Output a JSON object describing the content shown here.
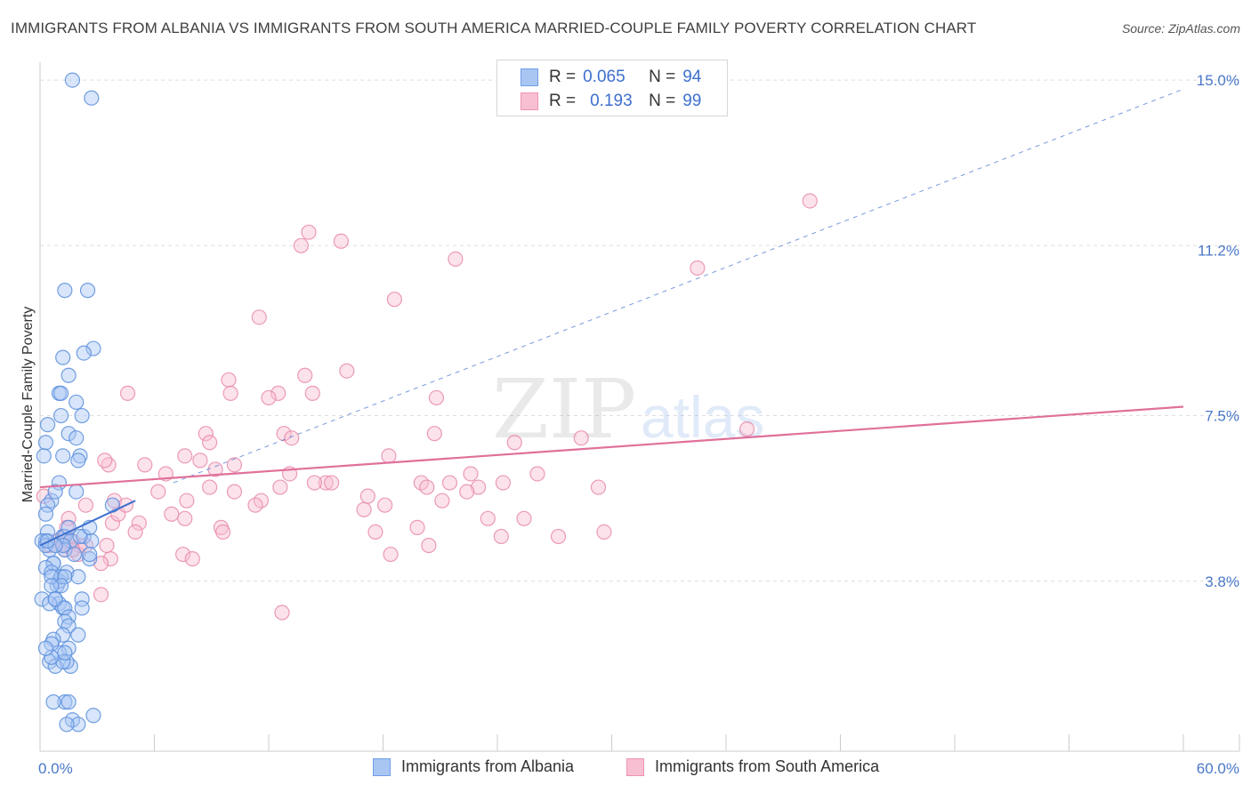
{
  "title": "IMMIGRANTS FROM ALBANIA VS IMMIGRANTS FROM SOUTH AMERICA MARRIED-COUPLE FAMILY POVERTY CORRELATION CHART",
  "source": "Source: ZipAtlas.com",
  "watermark": {
    "zip": "ZIP",
    "atlas": "atlas"
  },
  "legend": {
    "r_label": "R =",
    "n_label": "N =",
    "series": [
      {
        "name": "Immigrants from Albania",
        "r": "0.065",
        "n": "94",
        "fill": "#a9c6f3",
        "stroke": "#6f9ee6"
      },
      {
        "name": "Immigrants from South America",
        "r": "0.193",
        "n": "99",
        "fill": "#f8bfd2",
        "stroke": "#ee93b2"
      }
    ]
  },
  "colors": {
    "blue_point": "#5b8fdc",
    "pink_point": "#e88aab",
    "blue_line": "#3d6fcf",
    "pink_line": "#e0709a",
    "grid": "#dddddd",
    "tick_text": "#4a78c8"
  },
  "chart_data": {
    "type": "scatter",
    "title": "IMMIGRANTS FROM ALBANIA VS IMMIGRANTS FROM SOUTH AMERICA MARRIED-COUPLE FAMILY POVERTY CORRELATION CHART",
    "xlabel": "",
    "ylabel": "Married-Couple Family Poverty",
    "xlim": [
      0,
      60
    ],
    "ylim": [
      0,
      15.3
    ],
    "x_tick_labels": [
      {
        "value": 0,
        "label": "0.0%"
      },
      {
        "value": 60,
        "label": "60.0%"
      }
    ],
    "y_tick_labels": [
      {
        "value": 3.8,
        "label": "3.8%"
      },
      {
        "value": 7.5,
        "label": "7.5%"
      },
      {
        "value": 11.2,
        "label": "11.2%"
      },
      {
        "value": 15.0,
        "label": "15.0%"
      }
    ],
    "y_gridlines": [
      3.8,
      7.5,
      11.3,
      15.0
    ],
    "x_minor_ticks": [
      0,
      6,
      12,
      18,
      24,
      30,
      36,
      42,
      48,
      54,
      60
    ],
    "series": [
      {
        "name": "Immigrants from Albania",
        "x": [
          1.7,
          2.7,
          1.3,
          2.5,
          2.8,
          1.2,
          1.5,
          1.0,
          1.1,
          2.3,
          0.4,
          1.1,
          1.9,
          0.3,
          2.2,
          1.5,
          2.1,
          1.9,
          0.2,
          1.2,
          2.0,
          0.6,
          1.0,
          0.8,
          0.4,
          0.3,
          1.9,
          1.2,
          0.4,
          1.3,
          1.6,
          2.3,
          1.5,
          0.3,
          0.1,
          1.3,
          2.7,
          0.5,
          1.2,
          0.3,
          0.8,
          1.8,
          2.6,
          2.1,
          0.7,
          1.4,
          2.6,
          0.9,
          0.7,
          2.0,
          0.3,
          1.0,
          0.6,
          1.1,
          1.3,
          0.6,
          1.1,
          0.6,
          0.8,
          1.0,
          2.2,
          1.2,
          1.3,
          0.1,
          0.5,
          0.8,
          1.5,
          2.2,
          1.3,
          1.5,
          1.2,
          0.7,
          2.0,
          1.5,
          1.0,
          1.6,
          1.4,
          0.5,
          0.8,
          1.2,
          1.3,
          3.8,
          1.5,
          2.6,
          1.7,
          0.6,
          2.8,
          2.0,
          0.7,
          1.4,
          0.6,
          0.4,
          1.3,
          0.3
        ],
        "y": [
          15.0,
          14.6,
          10.3,
          10.3,
          9.0,
          8.8,
          8.4,
          8.0,
          8.0,
          8.9,
          7.3,
          7.5,
          7.8,
          6.9,
          7.5,
          7.1,
          6.6,
          7.0,
          6.6,
          6.6,
          6.5,
          5.6,
          6.0,
          5.8,
          5.5,
          5.3,
          5.8,
          4.8,
          4.9,
          4.8,
          4.7,
          4.8,
          5.0,
          4.7,
          4.7,
          4.5,
          4.7,
          4.5,
          4.6,
          4.6,
          4.6,
          4.4,
          4.3,
          4.8,
          4.2,
          4.0,
          4.4,
          3.7,
          4.2,
          3.9,
          4.1,
          3.8,
          4.0,
          3.9,
          3.9,
          3.9,
          3.7,
          3.7,
          3.4,
          3.3,
          3.4,
          3.2,
          3.2,
          3.4,
          3.3,
          3.4,
          3.0,
          3.2,
          2.9,
          2.8,
          2.6,
          2.5,
          2.6,
          2.3,
          2.2,
          1.9,
          2.0,
          2.0,
          1.9,
          2.0,
          1.1,
          5.5,
          1.1,
          5.0,
          0.7,
          2.4,
          0.8,
          0.6,
          1.1,
          0.6,
          2.1,
          4.7,
          2.2,
          2.3
        ],
        "trend": {
          "x": [
            0,
            5
          ],
          "y": [
            4.6,
            5.6
          ],
          "style": "solid"
        },
        "trend_extended": {
          "x": [
            7,
            60
          ],
          "y": [
            6.0,
            14.8
          ],
          "style": "dashed"
        }
      },
      {
        "name": "Immigrants from South America",
        "x": [
          40.4,
          14.1,
          13.7,
          15.8,
          21.8,
          24.9,
          11.5,
          34.5,
          9.9,
          16.1,
          37.1,
          4.6,
          13.9,
          10.0,
          12.5,
          12.0,
          14.3,
          18.6,
          20.8,
          12.8,
          13.2,
          5.5,
          18.3,
          8.7,
          10.2,
          8.9,
          20.7,
          9.2,
          28.4,
          3.6,
          22.6,
          6.6,
          7.6,
          15.0,
          15.3,
          21.5,
          13.1,
          8.4,
          26.1,
          3.8,
          3.4,
          20.0,
          14.4,
          6.2,
          12.6,
          8.9,
          20.3,
          23.0,
          24.3,
          11.6,
          7.7,
          22.4,
          17.0,
          3.9,
          10.2,
          6.9,
          11.3,
          17.2,
          2.4,
          9.5,
          4.1,
          18.1,
          5.2,
          7.6,
          21.1,
          29.3,
          4.5,
          23.5,
          5.0,
          1.5,
          19.8,
          25.4,
          29.6,
          2.4,
          27.2,
          24.2,
          20.4,
          3.7,
          1.3,
          7.5,
          2.0,
          3.2,
          12.7,
          18.4,
          17.6,
          0.2,
          2.1,
          1.4,
          1.2,
          3.5,
          1.3,
          9.6,
          0.5,
          1.7,
          0.9,
          1.7,
          3.2,
          8.0,
          1.4
        ],
        "y": [
          12.3,
          11.6,
          11.3,
          11.4,
          11.0,
          6.9,
          9.7,
          10.8,
          8.3,
          8.5,
          7.2,
          8.0,
          8.4,
          8.0,
          8.0,
          7.9,
          8.0,
          10.1,
          7.9,
          7.1,
          7.0,
          6.4,
          6.6,
          7.1,
          6.4,
          6.9,
          7.1,
          6.3,
          7.0,
          6.4,
          6.2,
          6.2,
          6.6,
          6.0,
          6.0,
          6.0,
          6.2,
          6.5,
          6.2,
          5.1,
          6.5,
          6.0,
          6.0,
          5.8,
          5.9,
          5.9,
          5.9,
          5.9,
          6.0,
          5.6,
          5.6,
          5.8,
          5.4,
          5.6,
          5.8,
          5.3,
          5.5,
          5.7,
          5.5,
          5.0,
          5.3,
          5.5,
          5.1,
          5.2,
          5.6,
          5.9,
          5.5,
          5.2,
          4.9,
          5.2,
          5.0,
          5.2,
          4.9,
          4.6,
          4.8,
          4.8,
          4.6,
          4.3,
          4.6,
          4.4,
          4.4,
          4.2,
          3.1,
          4.4,
          4.9,
          5.7,
          4.6,
          4.6,
          4.8,
          4.6,
          4.5,
          4.9,
          4.6,
          4.7,
          4.7,
          4.5,
          3.5,
          4.3,
          5.0
        ],
        "trend": {
          "x": [
            0,
            60
          ],
          "y": [
            5.9,
            7.7
          ],
          "style": "solid"
        }
      }
    ]
  }
}
